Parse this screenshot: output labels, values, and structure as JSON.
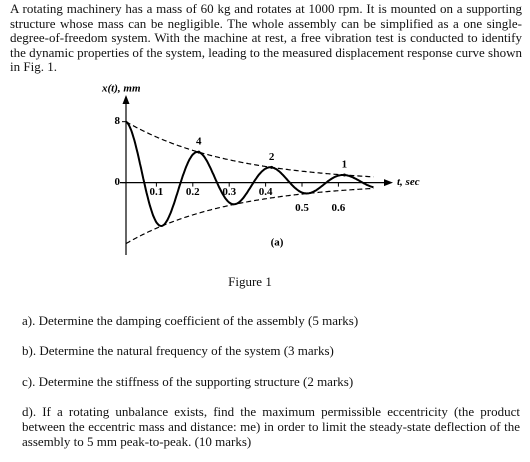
{
  "intro": "A rotating machinery has a mass of 60 kg and rotates at 1000 rpm. It is mounted on a supporting structure whose mass can be negligible. The whole assembly can be simplified as a one single-degree-of-freedom system. With the machine at rest, a free vibration test is conducted to identify the dynamic properties of the system, leading to the measured displacement response curve shown in Fig. 1.",
  "figure": {
    "chart_data": {
      "type": "line",
      "y_label": "x(t), mm",
      "x_label": "t, sec",
      "x": [
        0.2,
        0.4,
        0.6
      ],
      "values": [
        4,
        2,
        1
      ],
      "xlim": [
        0,
        0.75
      ],
      "xticks": [
        0.1,
        0.2,
        0.3,
        0.4,
        0.5,
        0.6
      ],
      "ylim": [
        -9.5,
        11.5
      ],
      "yticks": [
        0,
        8
      ]
    },
    "panel": "(a)",
    "caption": "Figure 1"
  },
  "questions": [
    "a). Determine the damping coefficient of the assembly (5 marks)",
    "b). Determine the natural frequency of the system (3 marks)",
    "c). Determine the stiffness of the supporting structure (2 marks)",
    "d). If a rotating unbalance exists, find the maximum permissible eccentricity (the product between the eccentric mass and distance: me) in order to limit the steady-state deflection of the assembly to 5 mm peak-to-peak. (10 marks)"
  ]
}
